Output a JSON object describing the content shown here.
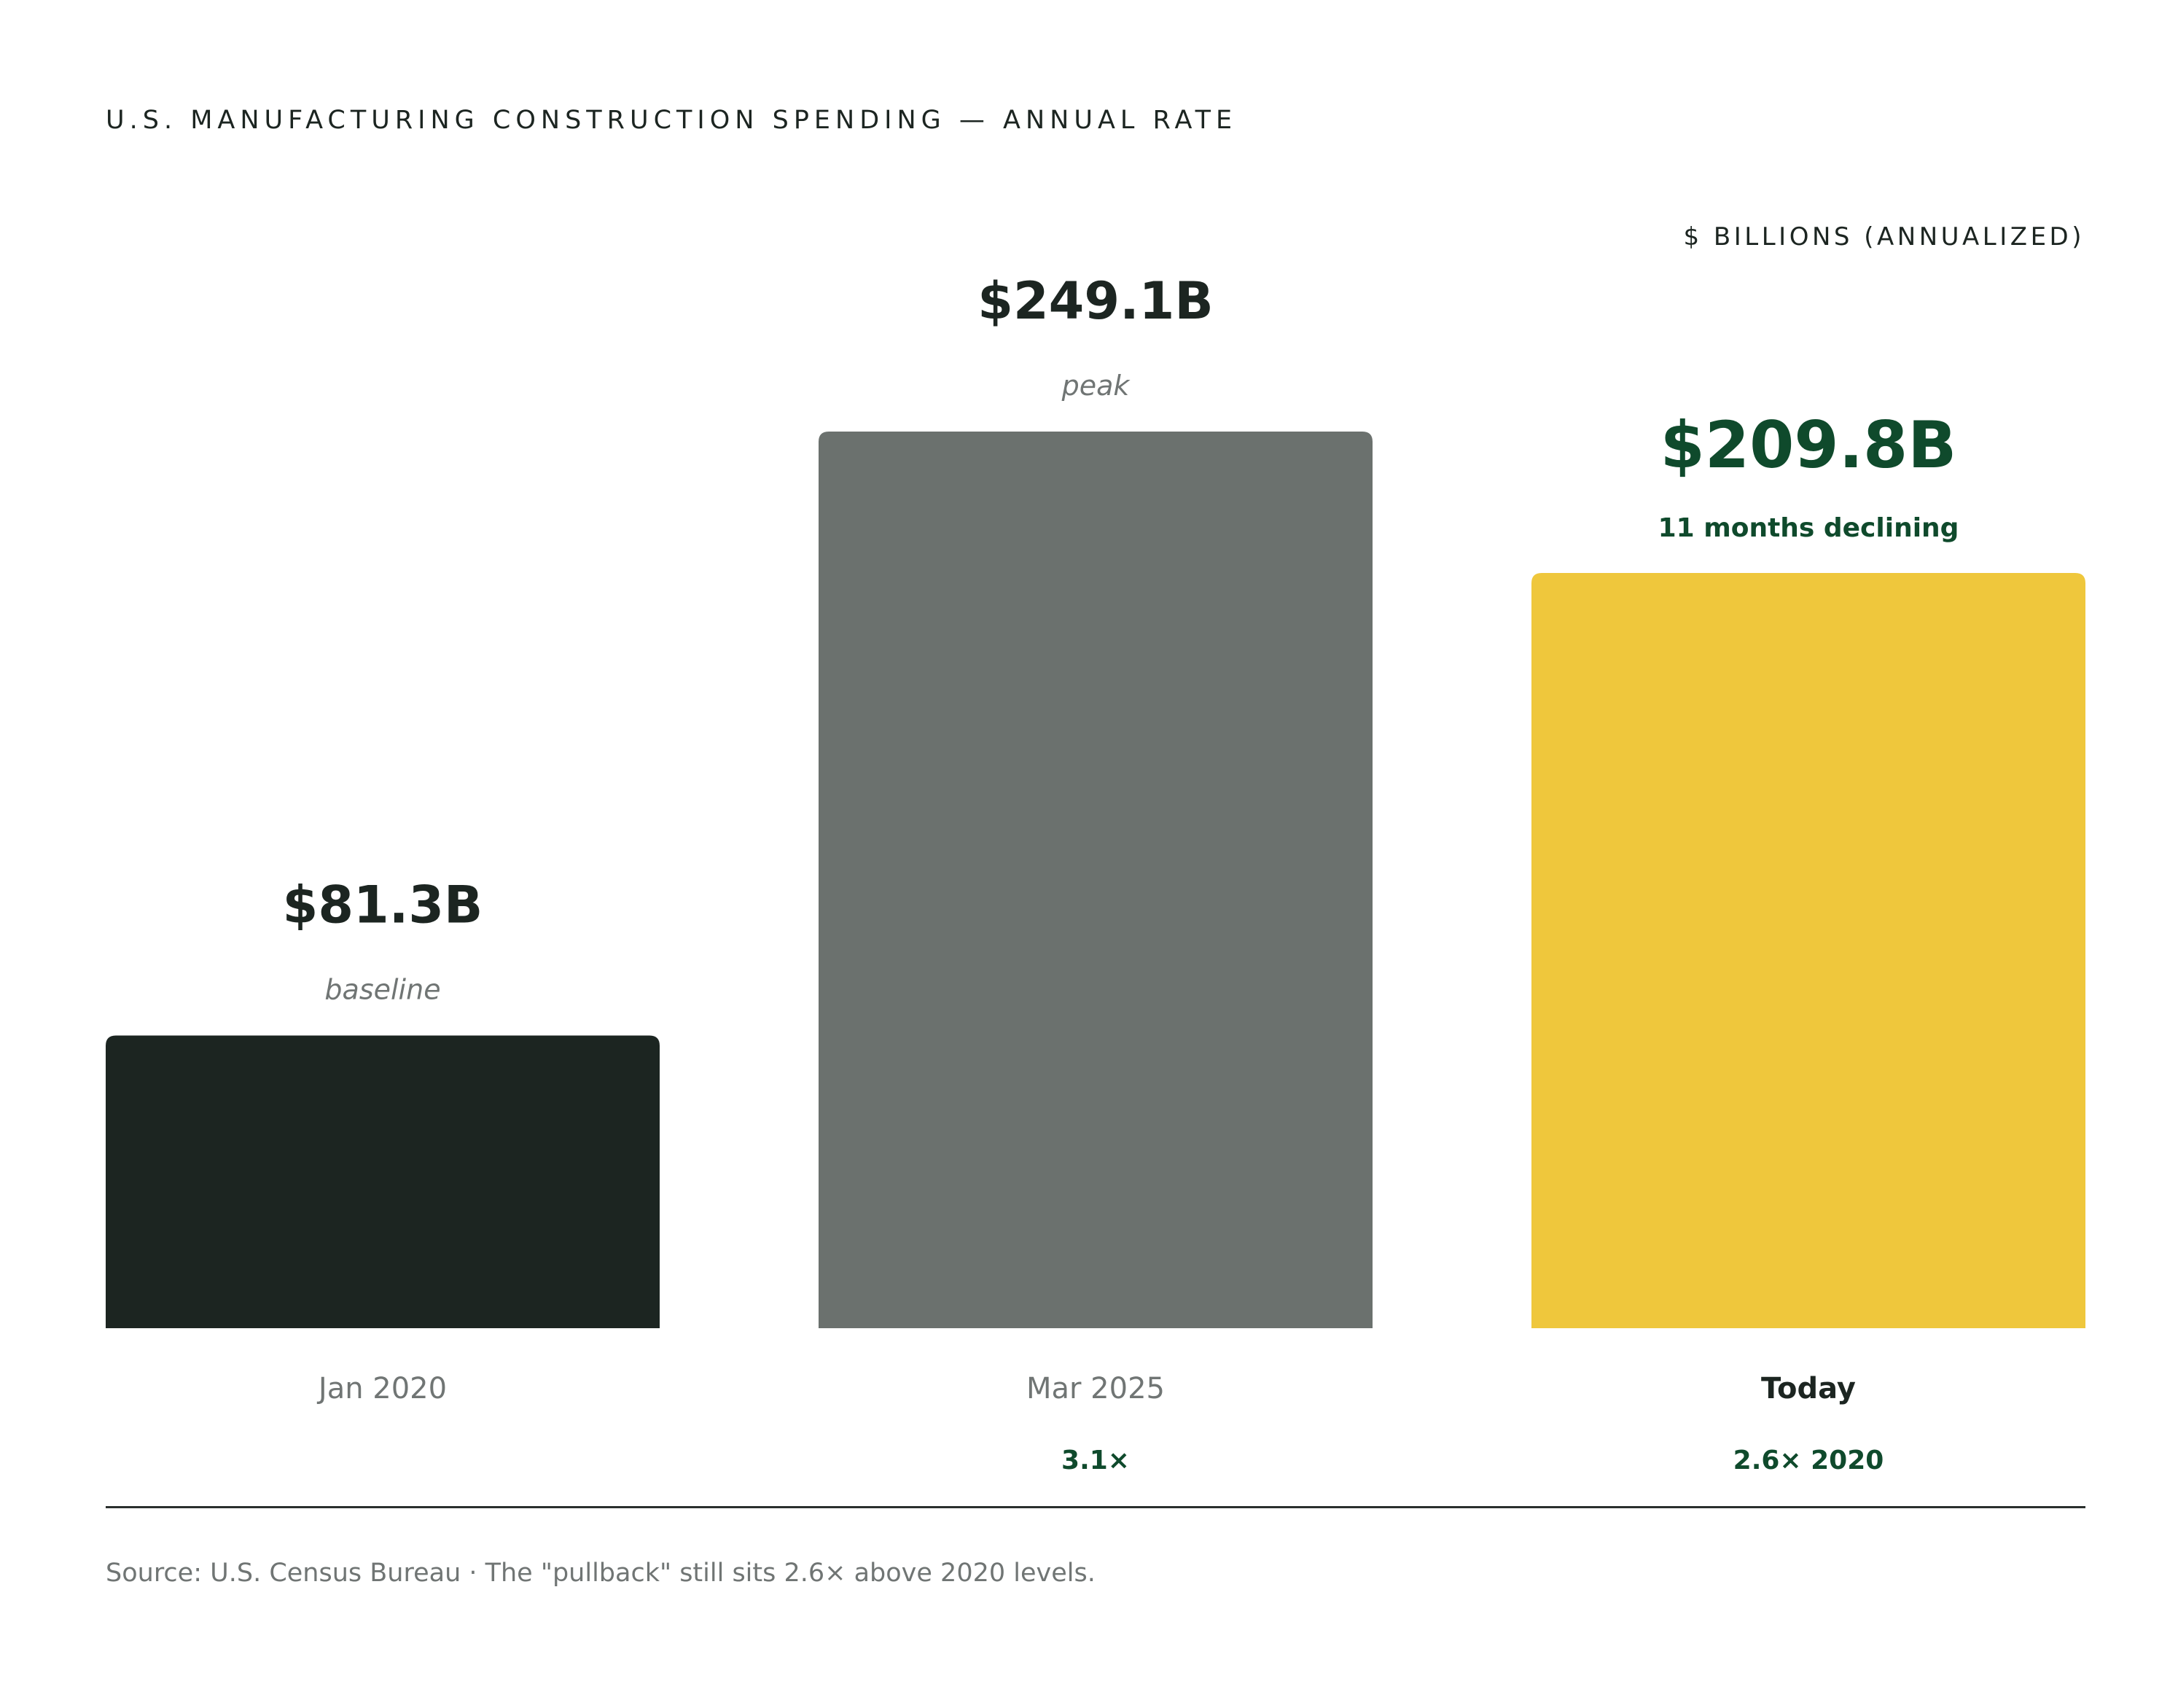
{
  "header": {
    "title": "U.S. MANUFACTURING CONSTRUCTION SPENDING — ANNUAL RATE",
    "unit_label": "$ BILLIONS (ANNUALIZED)"
  },
  "footer": {
    "source": "Source: U.S. Census Bureau · The \"pullback\" still sits 2.6× above 2020 levels."
  },
  "colors": {
    "jan2020": "#1c2521",
    "mar2025": "#6b716e",
    "today": "#efc73c",
    "accent_green": "#0f4a2c",
    "muted_text": "#707574",
    "dark_text": "#1c2521"
  },
  "chart_data": {
    "type": "bar",
    "title": "U.S. MANUFACTURING CONSTRUCTION SPENDING — ANNUAL RATE",
    "ylabel": "$ BILLIONS (ANNUALIZED)",
    "ylim": [
      0,
      249.1
    ],
    "grid": false,
    "categories": [
      "Jan 2020",
      "Mar 2025",
      "Today"
    ],
    "values": [
      81.3,
      249.1,
      209.8
    ],
    "bars": [
      {
        "category": "Jan 2020",
        "value": 81.3,
        "value_label": "$81.3B",
        "note": "baseline",
        "multiple": "",
        "color": "#1c2521",
        "emphasis": "normal"
      },
      {
        "category": "Mar 2025",
        "value": 249.1,
        "value_label": "$249.1B",
        "note": "peak",
        "multiple": "3.1×",
        "color": "#6b716e",
        "emphasis": "normal"
      },
      {
        "category": "Today",
        "value": 209.8,
        "value_label": "$209.8B",
        "note": "11 months declining",
        "multiple": "2.6× 2020",
        "color": "#efc73c",
        "emphasis": "highlight"
      }
    ]
  }
}
